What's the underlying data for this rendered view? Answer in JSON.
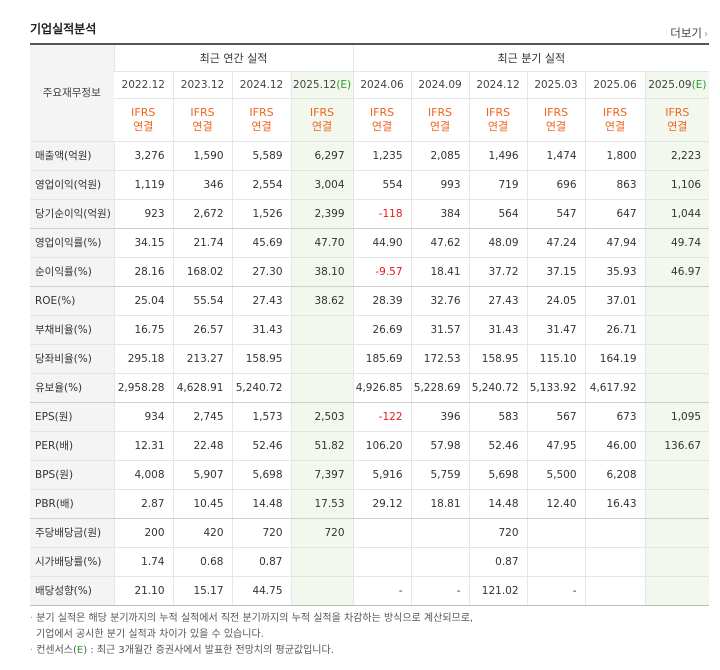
{
  "title": "기업실적분석",
  "more": "더보기",
  "more_icon": "chevron-right-icon",
  "row_header": "주요재무정보",
  "annual_group": "최근 연간 실적",
  "quarterly_group": "최근 분기 실적",
  "est_mark": "(E)",
  "periods": [
    {
      "label": "2022.12",
      "est": false
    },
    {
      "label": "2023.12",
      "est": false
    },
    {
      "label": "2024.12",
      "est": false
    },
    {
      "label": "2025.12",
      "est": true
    },
    {
      "label": "2024.06",
      "est": false
    },
    {
      "label": "2024.09",
      "est": false
    },
    {
      "label": "2024.12",
      "est": false
    },
    {
      "label": "2025.03",
      "est": false
    },
    {
      "label": "2025.06",
      "est": false
    },
    {
      "label": "2025.09",
      "est": true
    }
  ],
  "ifrs_line1": "IFRS",
  "ifrs_line2": "연결",
  "rows": [
    {
      "label": "매출액(억원)",
      "values": [
        "3,276",
        "1,590",
        "5,589",
        "6,297",
        "1,235",
        "2,085",
        "1,496",
        "1,474",
        "1,800",
        "2,223"
      ]
    },
    {
      "label": "영업이익(억원)",
      "values": [
        "1,119",
        "346",
        "2,554",
        "3,004",
        "554",
        "993",
        "719",
        "696",
        "863",
        "1,106"
      ]
    },
    {
      "label": "당기순이익(억원)",
      "values": [
        "923",
        "2,672",
        "1,526",
        "2,399",
        "-118",
        "384",
        "564",
        "547",
        "647",
        "1,044"
      ]
    },
    {
      "label": "영업이익률(%)",
      "values": [
        "34.15",
        "21.74",
        "45.69",
        "47.70",
        "44.90",
        "47.62",
        "48.09",
        "47.24",
        "47.94",
        "49.74"
      ]
    },
    {
      "label": "순이익률(%)",
      "values": [
        "28.16",
        "168.02",
        "27.30",
        "38.10",
        "-9.57",
        "18.41",
        "37.72",
        "37.15",
        "35.93",
        "46.97"
      ]
    },
    {
      "label": "ROE(%)",
      "values": [
        "25.04",
        "55.54",
        "27.43",
        "38.62",
        "28.39",
        "32.76",
        "27.43",
        "24.05",
        "37.01",
        ""
      ]
    },
    {
      "label": "부채비율(%)",
      "values": [
        "16.75",
        "26.57",
        "31.43",
        "",
        "26.69",
        "31.57",
        "31.43",
        "31.47",
        "26.71",
        ""
      ]
    },
    {
      "label": "당좌비율(%)",
      "values": [
        "295.18",
        "213.27",
        "158.95",
        "",
        "185.69",
        "172.53",
        "158.95",
        "115.10",
        "164.19",
        ""
      ]
    },
    {
      "label": "유보율(%)",
      "values": [
        "2,958.28",
        "4,628.91",
        "5,240.72",
        "",
        "4,926.85",
        "5,228.69",
        "5,240.72",
        "5,133.92",
        "4,617.92",
        ""
      ]
    },
    {
      "label": "EPS(원)",
      "values": [
        "934",
        "2,745",
        "1,573",
        "2,503",
        "-122",
        "396",
        "583",
        "567",
        "673",
        "1,095"
      ]
    },
    {
      "label": "PER(배)",
      "values": [
        "12.31",
        "22.48",
        "52.46",
        "51.82",
        "106.20",
        "57.98",
        "52.46",
        "47.95",
        "46.00",
        "136.67"
      ]
    },
    {
      "label": "BPS(원)",
      "values": [
        "4,008",
        "5,907",
        "5,698",
        "7,397",
        "5,916",
        "5,759",
        "5,698",
        "5,500",
        "6,208",
        ""
      ]
    },
    {
      "label": "PBR(배)",
      "values": [
        "2.87",
        "10.45",
        "14.48",
        "17.53",
        "29.12",
        "18.81",
        "14.48",
        "12.40",
        "16.43",
        ""
      ]
    },
    {
      "label": "주당배당금(원)",
      "values": [
        "200",
        "420",
        "720",
        "720",
        "",
        "",
        "720",
        "",
        "",
        ""
      ]
    },
    {
      "label": "시가배당률(%)",
      "values": [
        "1.74",
        "0.68",
        "0.87",
        "",
        "",
        "",
        "0.87",
        "",
        "",
        ""
      ]
    },
    {
      "label": "배당성향(%)",
      "values": [
        "21.10",
        "15.17",
        "44.75",
        "",
        "-",
        "-",
        "121.02",
        "-",
        "",
        ""
      ]
    }
  ],
  "notes": {
    "bullet": "·",
    "line1": "분기 실적은 해당 분기까지의 누적 실적에서 직전 분기까지의 누적 실적을 차감하는 방식으로 계산되므로,",
    "line2": "기업에서 공시한 분기 실적과 차이가 있을 수 있습니다.",
    "line3_prefix": "컨센서스(",
    "line3_e": "E",
    "line3_suffix": ") : 최근 3개월간 증권사에서 발표한 전망치의 평균값입니다."
  },
  "colors": {
    "negative": "#e8191e",
    "ifrs": "#f0641e",
    "estimate_bg": "#f3f8ee",
    "estimate_mark": "#2d9a2d"
  }
}
